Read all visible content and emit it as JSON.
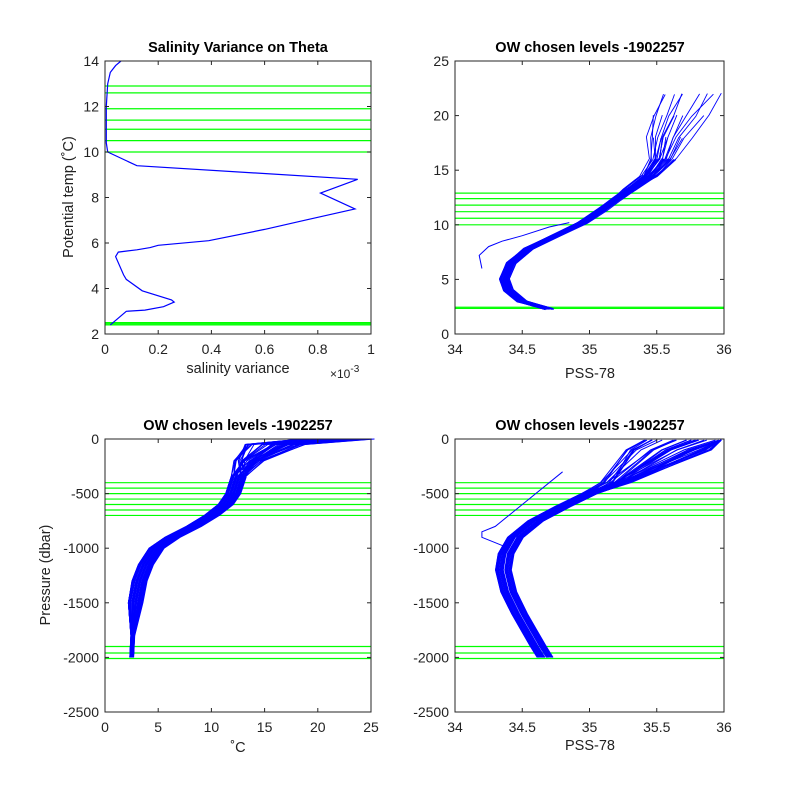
{
  "colors": {
    "profile": "#0000ff",
    "levels": "#00ff00",
    "axes": "#262626"
  },
  "chart_data": [
    {
      "type": "line",
      "title": "Salinity Variance on Theta",
      "xlabel": "salinity variance",
      "xexponent": "×10",
      "xexponent_sup": "-3",
      "ylabel": "Potential temp (˚C)",
      "xlim": [
        0,
        1
      ],
      "ylim": [
        2,
        14
      ],
      "xticks": [
        "0",
        "0.2",
        "0.4",
        "0.6",
        "0.8",
        "1"
      ],
      "yticks": [
        "2",
        "4",
        "6",
        "8",
        "10",
        "12",
        "14"
      ],
      "series": [
        {
          "x": [
            0.02,
            0.04,
            0.08,
            0.15,
            0.22,
            0.26,
            0.25,
            0.14,
            0.08,
            0.07,
            0.04,
            0.05,
            0.12,
            0.17,
            0.2,
            0.39,
            0.6,
            0.75,
            0.94,
            0.81,
            0.95,
            0.12,
            0.01,
            0.005,
            0.005,
            0.01,
            0.02,
            0.04,
            0.06
          ],
          "y": [
            2.4,
            2.6,
            3.0,
            3.05,
            3.2,
            3.4,
            3.5,
            3.9,
            4.4,
            4.6,
            5.4,
            5.6,
            5.7,
            5.8,
            5.9,
            6.1,
            6.6,
            7.0,
            7.5,
            8.2,
            8.8,
            9.4,
            10.0,
            10.4,
            12.0,
            13.0,
            13.5,
            13.8,
            14.0
          ]
        }
      ],
      "levels": [
        2.4,
        2.45,
        2.5,
        10.0,
        10.5,
        11.0,
        11.4,
        11.9,
        12.6,
        12.9
      ]
    },
    {
      "type": "line",
      "title": "OW chosen levels -1902257",
      "xlabel": "PSS-78",
      "ylabel": "",
      "xlim": [
        34,
        36
      ],
      "ylim": [
        0,
        25
      ],
      "xticks": [
        "34",
        "34.5",
        "35",
        "35.5",
        "36"
      ],
      "yticks": [
        "0",
        "5",
        "10",
        "15",
        "20",
        "25"
      ],
      "profile_count": 45,
      "reference_profile": {
        "s": [
          34.7,
          34.5,
          34.4,
          34.37,
          34.42,
          34.55,
          34.75,
          34.95,
          35.1,
          35.2,
          35.3,
          35.45,
          35.55,
          35.6,
          35.7,
          35.8
        ],
        "t": [
          2.3,
          3.0,
          4.0,
          5.0,
          6.5,
          7.8,
          9.0,
          10.2,
          11.4,
          12.3,
          13.2,
          14.5,
          16.0,
          18.0,
          20.0,
          22.0
        ]
      },
      "anomalous_profile": {
        "s": [
          34.2,
          34.18,
          34.25,
          34.35,
          34.5,
          34.7,
          34.85
        ],
        "t": [
          6.0,
          7.2,
          8.0,
          8.5,
          9.0,
          9.8,
          10.2
        ]
      },
      "levels": [
        2.35,
        2.45,
        10.0,
        10.6,
        11.2,
        11.8,
        12.4,
        12.9
      ]
    },
    {
      "type": "line",
      "title": "OW chosen levels -1902257",
      "xlabel": "˚C",
      "ylabel": "Pressure (dbar)",
      "xlim": [
        0,
        25
      ],
      "ylim": [
        -2500,
        0
      ],
      "xticks": [
        "0",
        "5",
        "10",
        "15",
        "20",
        "25"
      ],
      "yticks": [
        "-2500",
        "-2000",
        "-1500",
        "-1000",
        "-500",
        "0"
      ],
      "profile_count": 45,
      "reference_profile": {
        "t": [
          22.0,
          16.0,
          13.5,
          12.5,
          12.0,
          11.3,
          10.0,
          8.3,
          6.3,
          4.8,
          3.8,
          3.2,
          2.8,
          2.6,
          2.5
        ],
        "p": [
          0,
          -50,
          -200,
          -350,
          -500,
          -600,
          -700,
          -800,
          -900,
          -1000,
          -1150,
          -1300,
          -1500,
          -1800,
          -2000
        ]
      },
      "levels": [
        -400,
        -450,
        -500,
        -550,
        -600,
        -650,
        -700,
        -1900,
        -1960,
        -2010
      ]
    },
    {
      "type": "line",
      "title": "OW chosen levels -1902257",
      "xlabel": "PSS-78",
      "ylabel": "",
      "xlim": [
        34,
        36
      ],
      "ylim": [
        -2500,
        0
      ],
      "xticks": [
        "34",
        "34.5",
        "35",
        "35.5",
        "36"
      ],
      "yticks": [
        "-2500",
        "-2000",
        "-1500",
        "-1000",
        "-500",
        "0"
      ],
      "profile_count": 45,
      "reference_profile": {
        "s": [
          35.8,
          35.6,
          35.4,
          35.2,
          35.0,
          34.8,
          34.6,
          34.45,
          34.38,
          34.36,
          34.4,
          34.48,
          34.55,
          34.62,
          34.67
        ],
        "p": [
          -10,
          -100,
          -250,
          -400,
          -500,
          -620,
          -750,
          -900,
          -1050,
          -1200,
          -1400,
          -1600,
          -1750,
          -1900,
          -2000
        ]
      },
      "anomalous_profile": {
        "s": [
          34.8,
          34.5,
          34.3,
          34.2,
          34.2,
          34.3,
          34.4
        ],
        "p": [
          -300,
          -600,
          -800,
          -850,
          -900,
          -950,
          -1000
        ]
      },
      "levels": [
        -400,
        -450,
        -500,
        -550,
        -600,
        -650,
        -700,
        -1900,
        -1960,
        -2010
      ]
    }
  ]
}
